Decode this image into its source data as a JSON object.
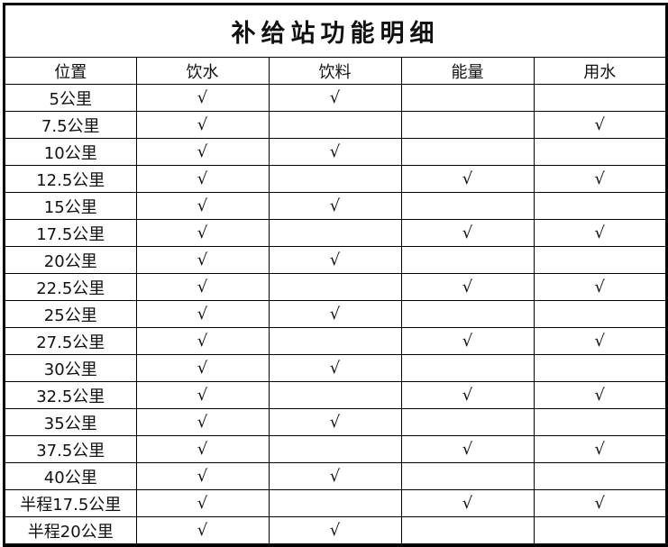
{
  "title": "补给站功能明细",
  "headers": [
    "位置",
    "饮水",
    "饮料",
    "能量",
    "用水"
  ],
  "check_mark": "√",
  "rows": [
    [
      "5公里",
      "√",
      "√",
      "",
      ""
    ],
    [
      "7.5公里",
      "√",
      "",
      "",
      "√"
    ],
    [
      "10公里",
      "√",
      "√",
      "",
      ""
    ],
    [
      "12.5公里",
      "√",
      "",
      "√",
      "√"
    ],
    [
      "15公里",
      "√",
      "√",
      "",
      ""
    ],
    [
      "17.5公里",
      "√",
      "",
      "√",
      "√"
    ],
    [
      "20公里",
      "√",
      "√",
      "",
      ""
    ],
    [
      "22.5公里",
      "√",
      "",
      "√",
      "√"
    ],
    [
      "25公里",
      "√",
      "√",
      "",
      ""
    ],
    [
      "27.5公里",
      "√",
      "",
      "√",
      "√"
    ],
    [
      "30公里",
      "√",
      "√",
      "",
      ""
    ],
    [
      "32.5公里",
      "√",
      "",
      "√",
      "√"
    ],
    [
      "35公里",
      "√",
      "√",
      "",
      ""
    ],
    [
      "37.5公里",
      "√",
      "",
      "√",
      "√"
    ],
    [
      "40公里",
      "√",
      "√",
      "",
      ""
    ],
    [
      "半程17.5公里",
      "√",
      "",
      "√",
      "√"
    ],
    [
      "半程20公里",
      "√",
      "√",
      "",
      ""
    ]
  ]
}
